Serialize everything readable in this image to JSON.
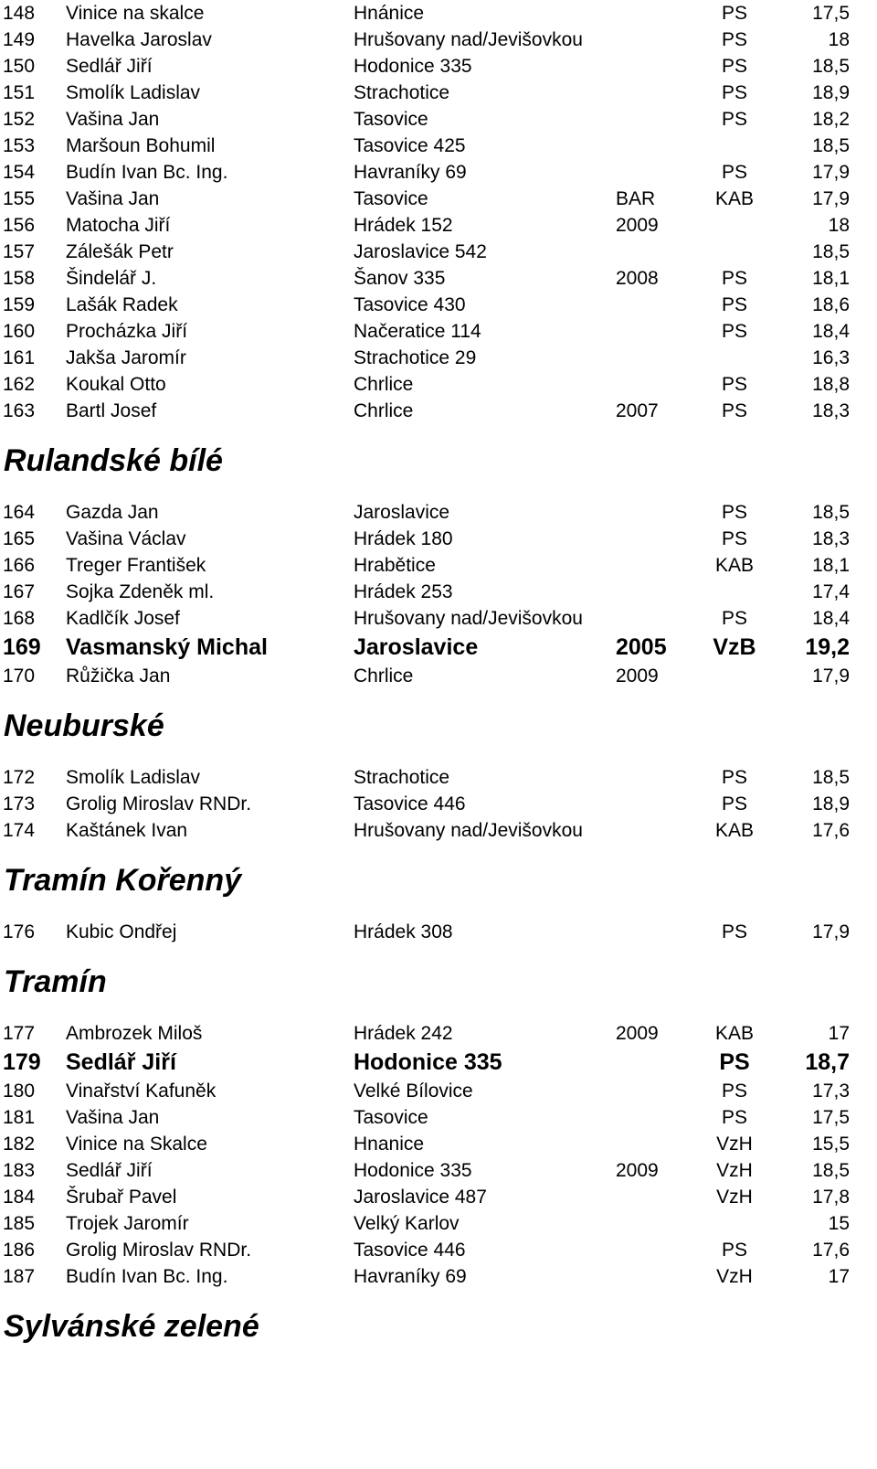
{
  "sections": [
    {
      "heading": "",
      "rows": [
        {
          "num": "148",
          "name": "Vinice na skalce",
          "place": "Hnánice",
          "year": "",
          "mark": "PS",
          "score": "17,5",
          "bold": false
        },
        {
          "num": "149",
          "name": "Havelka Jaroslav",
          "place": "Hrušovany nad/Jevišovkou",
          "year": "",
          "mark": "PS",
          "score": "18",
          "bold": false
        },
        {
          "num": "150",
          "name": "Sedlář Jiří",
          "place": "Hodonice 335",
          "year": "",
          "mark": "PS",
          "score": "18,5",
          "bold": false
        },
        {
          "num": "151",
          "name": "Smolík Ladislav",
          "place": "Strachotice",
          "year": "",
          "mark": "PS",
          "score": "18,9",
          "bold": false
        },
        {
          "num": "152",
          "name": "Vašina Jan",
          "place": "Tasovice",
          "year": "",
          "mark": "PS",
          "score": "18,2",
          "bold": false
        },
        {
          "num": "153",
          "name": "Maršoun Bohumil",
          "place": "Tasovice 425",
          "year": "",
          "mark": "",
          "score": "18,5",
          "bold": false
        },
        {
          "num": "154",
          "name": "Budín Ivan Bc. Ing.",
          "place": "Havraníky 69",
          "year": "",
          "mark": "PS",
          "score": "17,9",
          "bold": false
        },
        {
          "num": "155",
          "name": "Vašina Jan",
          "place": "Tasovice",
          "year": "BAR",
          "mark": "KAB",
          "score": "17,9",
          "bold": false
        },
        {
          "num": "156",
          "name": "Matocha Jiří",
          "place": "Hrádek 152",
          "year": "2009",
          "mark": "",
          "score": "18",
          "bold": false
        },
        {
          "num": "157",
          "name": "Zálešák Petr",
          "place": "Jaroslavice 542",
          "year": "",
          "mark": "",
          "score": "18,5",
          "bold": false
        },
        {
          "num": "158",
          "name": "Šindelář J.",
          "place": "Šanov 335",
          "year": "2008",
          "mark": "PS",
          "score": "18,1",
          "bold": false
        },
        {
          "num": "159",
          "name": "Lašák Radek",
          "place": "Tasovice 430",
          "year": "",
          "mark": "PS",
          "score": "18,6",
          "bold": false
        },
        {
          "num": "160",
          "name": "Procházka Jiří",
          "place": "Načeratice 114",
          "year": "",
          "mark": "PS",
          "score": "18,4",
          "bold": false
        },
        {
          "num": "161",
          "name": "Jakša Jaromír",
          "place": "Strachotice 29",
          "year": "",
          "mark": "",
          "score": "16,3",
          "bold": false
        },
        {
          "num": "162",
          "name": "Koukal Otto",
          "place": "Chrlice",
          "year": "",
          "mark": "PS",
          "score": "18,8",
          "bold": false
        },
        {
          "num": "163",
          "name": "Bartl Josef",
          "place": "Chrlice",
          "year": "2007",
          "mark": "PS",
          "score": "18,3",
          "bold": false
        }
      ]
    },
    {
      "heading": "Rulandské bílé",
      "rows": [
        {
          "num": "164",
          "name": "Gazda Jan",
          "place": "Jaroslavice",
          "year": "",
          "mark": "PS",
          "score": "18,5",
          "bold": false
        },
        {
          "num": "165",
          "name": "Vašina Václav",
          "place": "Hrádek 180",
          "year": "",
          "mark": "PS",
          "score": "18,3",
          "bold": false
        },
        {
          "num": "166",
          "name": "Treger František",
          "place": "Hrabětice",
          "year": "",
          "mark": "KAB",
          "score": "18,1",
          "bold": false
        },
        {
          "num": "167",
          "name": "Sojka Zdeněk ml.",
          "place": "Hrádek 253",
          "year": "",
          "mark": "",
          "score": "17,4",
          "bold": false
        },
        {
          "num": "168",
          "name": "Kadlčík Josef",
          "place": "Hrušovany nad/Jevišovkou",
          "year": "",
          "mark": "PS",
          "score": "18,4",
          "bold": false
        },
        {
          "num": "169",
          "name": "Vasmanský Michal",
          "place": "Jaroslavice",
          "year": "2005",
          "mark": "VzB",
          "score": "19,2",
          "bold": true
        },
        {
          "num": "170",
          "name": "Růžička Jan",
          "place": "Chrlice",
          "year": "2009",
          "mark": "",
          "score": "17,9",
          "bold": false
        }
      ]
    },
    {
      "heading": "Neuburské",
      "rows": [
        {
          "num": "172",
          "name": "Smolík Ladislav",
          "place": "Strachotice",
          "year": "",
          "mark": "PS",
          "score": "18,5",
          "bold": false
        },
        {
          "num": "173",
          "name": "Grolig Miroslav RNDr.",
          "place": "Tasovice 446",
          "year": "",
          "mark": "PS",
          "score": "18,9",
          "bold": false
        },
        {
          "num": "174",
          "name": "Kaštánek Ivan",
          "place": "Hrušovany nad/Jevišovkou",
          "year": "",
          "mark": "KAB",
          "score": "17,6",
          "bold": false
        }
      ]
    },
    {
      "heading": "Tramín Kořenný",
      "rows": [
        {
          "num": "176",
          "name": "Kubic Ondřej",
          "place": "Hrádek 308",
          "year": "",
          "mark": "PS",
          "score": "17,9",
          "bold": false
        }
      ]
    },
    {
      "heading": "Tramín",
      "rows": [
        {
          "num": "177",
          "name": "Ambrozek Miloš",
          "place": "Hrádek 242",
          "year": "2009",
          "mark": "KAB",
          "score": "17",
          "bold": false
        },
        {
          "num": "179",
          "name": "Sedlář Jiří",
          "place": "Hodonice 335",
          "year": "",
          "mark": "PS",
          "score": "18,7",
          "bold": true
        },
        {
          "num": "180",
          "name": "Vinařství Kafuněk",
          "place": "Velké Bílovice",
          "year": "",
          "mark": "PS",
          "score": "17,3",
          "bold": false
        },
        {
          "num": "181",
          "name": "Vašina Jan",
          "place": "Tasovice",
          "year": "",
          "mark": "PS",
          "score": "17,5",
          "bold": false
        },
        {
          "num": "182",
          "name": "Vinice na Skalce",
          "place": "Hnanice",
          "year": "",
          "mark": "VzH",
          "score": "15,5",
          "bold": false
        },
        {
          "num": "183",
          "name": "Sedlář Jiří",
          "place": "Hodonice 335",
          "year": "2009",
          "mark": "VzH",
          "score": "18,5",
          "bold": false
        },
        {
          "num": "184",
          "name": "Šrubař Pavel",
          "place": "Jaroslavice 487",
          "year": "",
          "mark": "VzH",
          "score": "17,8",
          "bold": false
        },
        {
          "num": "185",
          "name": "Trojek Jaromír",
          "place": "Velký Karlov",
          "year": "",
          "mark": "",
          "score": "15",
          "bold": false
        },
        {
          "num": "186",
          "name": "Grolig Miroslav RNDr.",
          "place": "Tasovice 446",
          "year": "",
          "mark": "PS",
          "score": "17,6",
          "bold": false
        },
        {
          "num": "187",
          "name": "Budín Ivan Bc. Ing.",
          "place": "Havraníky 69",
          "year": "",
          "mark": "VzH",
          "score": "17",
          "bold": false
        }
      ]
    },
    {
      "heading": "Sylvánské zelené",
      "rows": []
    }
  ]
}
